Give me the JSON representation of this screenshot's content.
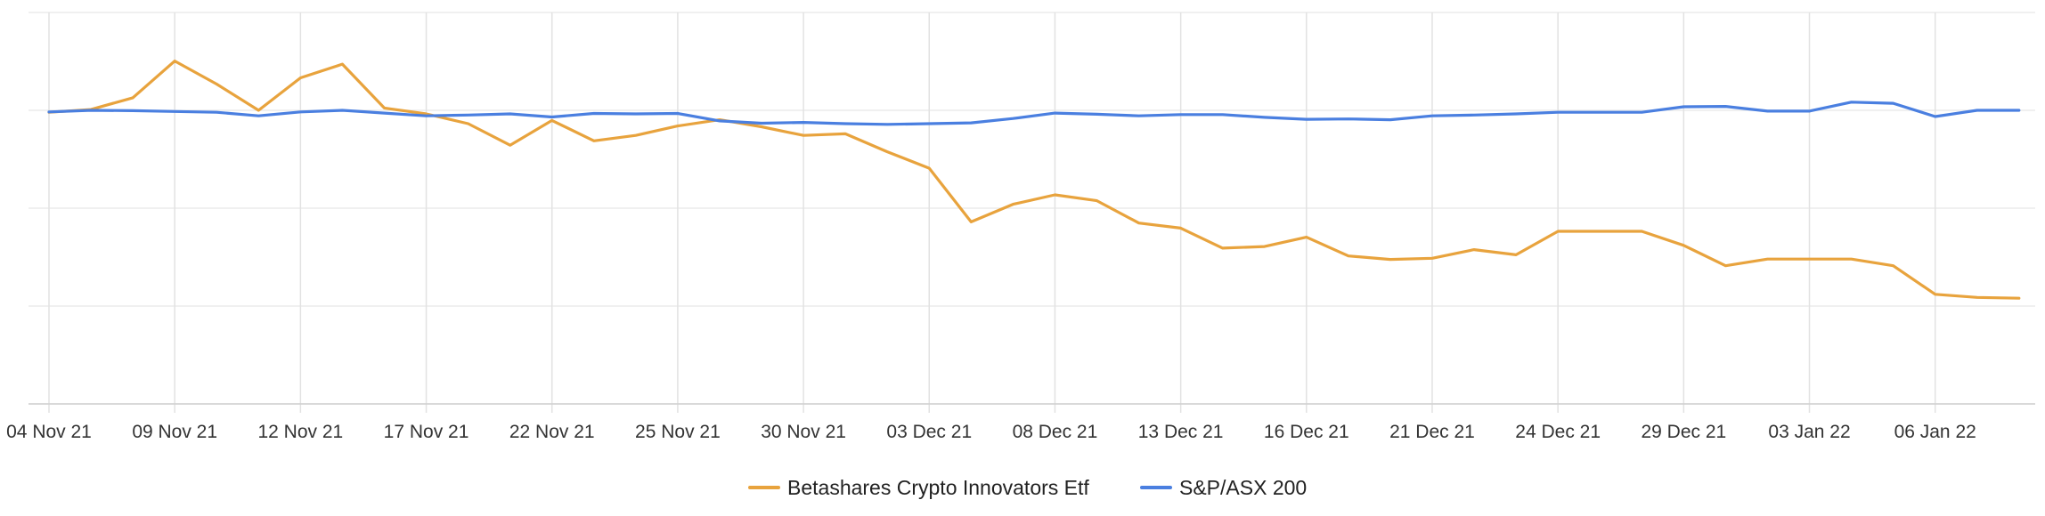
{
  "chart_data": {
    "type": "line",
    "title": "",
    "xlabel": "",
    "ylabel": "",
    "ylim": [
      0,
      100
    ],
    "grid": true,
    "legend_position": "bottom-center",
    "tick_labels": [
      "04 Nov 21",
      "09 Nov 21",
      "12 Nov 21",
      "17 Nov 21",
      "22 Nov 21",
      "25 Nov 21",
      "30 Nov 21",
      "03 Dec 21",
      "08 Dec 21",
      "13 Dec 21",
      "16 Dec 21",
      "21 Dec 21",
      "24 Dec 21",
      "29 Dec 21",
      "03 Jan 22",
      "06 Jan 22"
    ],
    "tick_index": [
      0,
      3,
      6,
      9,
      12,
      15,
      18,
      21,
      24,
      27,
      30,
      33,
      36,
      39,
      42,
      45
    ],
    "point_count": 48,
    "series": [
      {
        "name": "Betashares Crypto Innovators Etf",
        "color": "#E8A33D",
        "values": [
          74.5,
          75.2,
          78.2,
          87.6,
          81.7,
          75.0,
          83.3,
          86.8,
          75.6,
          74.1,
          71.6,
          66.1,
          72.4,
          67.2,
          68.6,
          71.0,
          72.6,
          70.8,
          68.6,
          69.0,
          64.4,
          60.2,
          46.5,
          51.0,
          53.4,
          51.9,
          46.2,
          44.9,
          39.8,
          40.2,
          42.6,
          37.8,
          36.9,
          37.2,
          39.4,
          38.1,
          44.1,
          44.1,
          44.1,
          40.5,
          35.3,
          37.0,
          37.0,
          37.0,
          35.3,
          28.0,
          27.2,
          27.0
        ]
      },
      {
        "name": "S&P/ASX 200",
        "color": "#4A7FE0",
        "values": [
          74.6,
          75.0,
          74.9,
          74.7,
          74.5,
          73.6,
          74.6,
          75.0,
          74.3,
          73.6,
          73.8,
          74.1,
          73.3,
          74.2,
          74.1,
          74.2,
          72.3,
          71.7,
          71.9,
          71.6,
          71.4,
          71.6,
          71.8,
          72.9,
          74.3,
          74.0,
          73.6,
          73.9,
          73.9,
          73.2,
          72.7,
          72.8,
          72.6,
          73.6,
          73.8,
          74.1,
          74.5,
          74.5,
          74.5,
          75.9,
          76.0,
          74.8,
          74.8,
          77.1,
          76.8,
          73.4,
          75.0,
          75.0
        ]
      }
    ]
  }
}
